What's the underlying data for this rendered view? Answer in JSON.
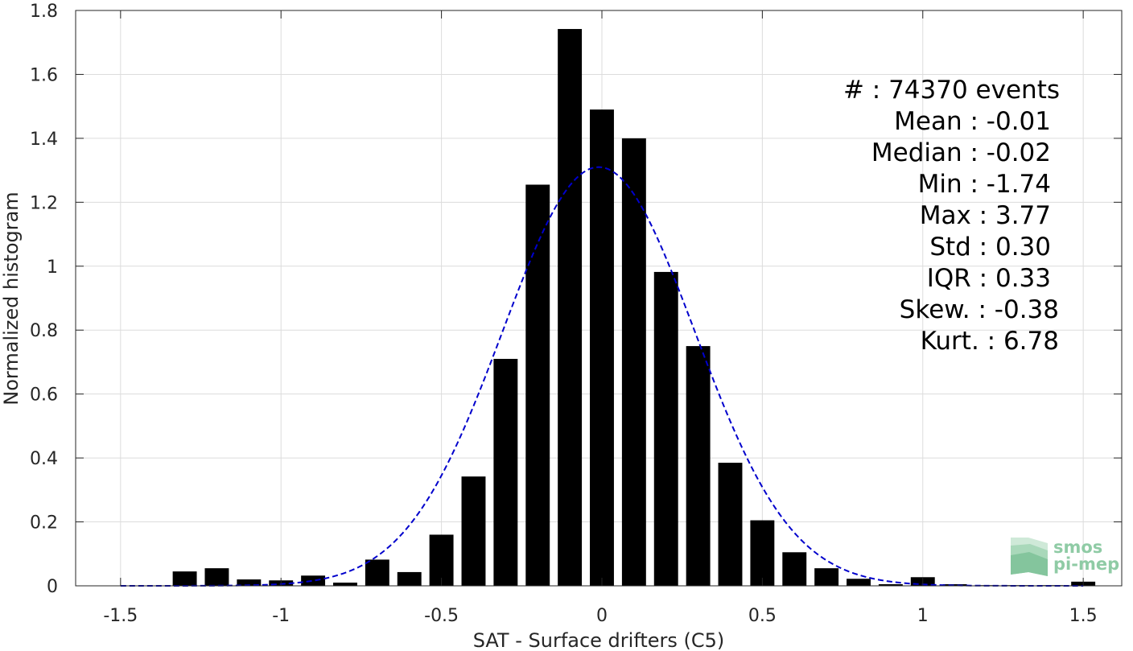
{
  "chart_data": {
    "type": "bar",
    "xlabel": "SAT - Surface drifters (C5)",
    "ylabel": "Normalized histogram",
    "xlim": [
      -1.64,
      1.62
    ],
    "ylim": [
      0,
      1.8
    ],
    "xticks": [
      -1.5,
      -1,
      -0.5,
      0,
      0.5,
      1,
      1.5
    ],
    "xtick_labels": [
      "-1.5",
      "-1",
      "-0.5",
      "0",
      "0.5",
      "1",
      "1.5"
    ],
    "yticks": [
      0,
      0.2,
      0.4,
      0.6,
      0.8,
      1,
      1.2,
      1.4,
      1.6,
      1.8
    ],
    "ytick_labels": [
      "0",
      "0.2",
      "0.4",
      "0.6",
      "0.8",
      "1",
      "1.2",
      "1.4",
      "1.6",
      "1.8"
    ],
    "grid": true,
    "bar_color": "#000000",
    "bin_width": 0.1,
    "bins": [
      {
        "x": -1.3,
        "y": 0.045
      },
      {
        "x": -1.2,
        "y": 0.055
      },
      {
        "x": -1.1,
        "y": 0.02
      },
      {
        "x": -1.0,
        "y": 0.017
      },
      {
        "x": -0.9,
        "y": 0.032
      },
      {
        "x": -0.8,
        "y": 0.01
      },
      {
        "x": -0.7,
        "y": 0.082
      },
      {
        "x": -0.6,
        "y": 0.043
      },
      {
        "x": -0.5,
        "y": 0.16
      },
      {
        "x": -0.4,
        "y": 0.342
      },
      {
        "x": -0.3,
        "y": 0.71
      },
      {
        "x": -0.2,
        "y": 1.255
      },
      {
        "x": -0.1,
        "y": 1.742
      },
      {
        "x": 0.0,
        "y": 1.49
      },
      {
        "x": 0.1,
        "y": 1.4
      },
      {
        "x": 0.2,
        "y": 0.982
      },
      {
        "x": 0.3,
        "y": 0.75
      },
      {
        "x": 0.4,
        "y": 0.385
      },
      {
        "x": 0.5,
        "y": 0.205
      },
      {
        "x": 0.6,
        "y": 0.105
      },
      {
        "x": 0.7,
        "y": 0.055
      },
      {
        "x": 0.8,
        "y": 0.022
      },
      {
        "x": 0.9,
        "y": 0.005
      },
      {
        "x": 1.0,
        "y": 0.027
      },
      {
        "x": 1.1,
        "y": 0.005
      },
      {
        "x": 1.2,
        "y": 0.002
      },
      {
        "x": 1.3,
        "y": 0.002
      },
      {
        "x": 1.4,
        "y": 0.002
      },
      {
        "x": 1.5,
        "y": 0.013
      }
    ],
    "fit_curve": {
      "type": "gaussian",
      "color": "#0000cc",
      "line_style": "dashed",
      "mean": -0.01,
      "std": 0.3,
      "peak": 1.31,
      "x_range": [
        -1.5,
        1.5
      ]
    },
    "stats": [
      "#  : 74370 events",
      "Mean : -0.01",
      "Median : -0.02",
      "Min : -1.74",
      "Max : 3.77",
      "Std : 0.30",
      "IQR : 0.33",
      "Skew. : -0.38",
      "Kurt. : 6.78"
    ]
  },
  "logo": {
    "line1": "smos",
    "line2": "pi-mep",
    "color": "#8fcba5"
  }
}
